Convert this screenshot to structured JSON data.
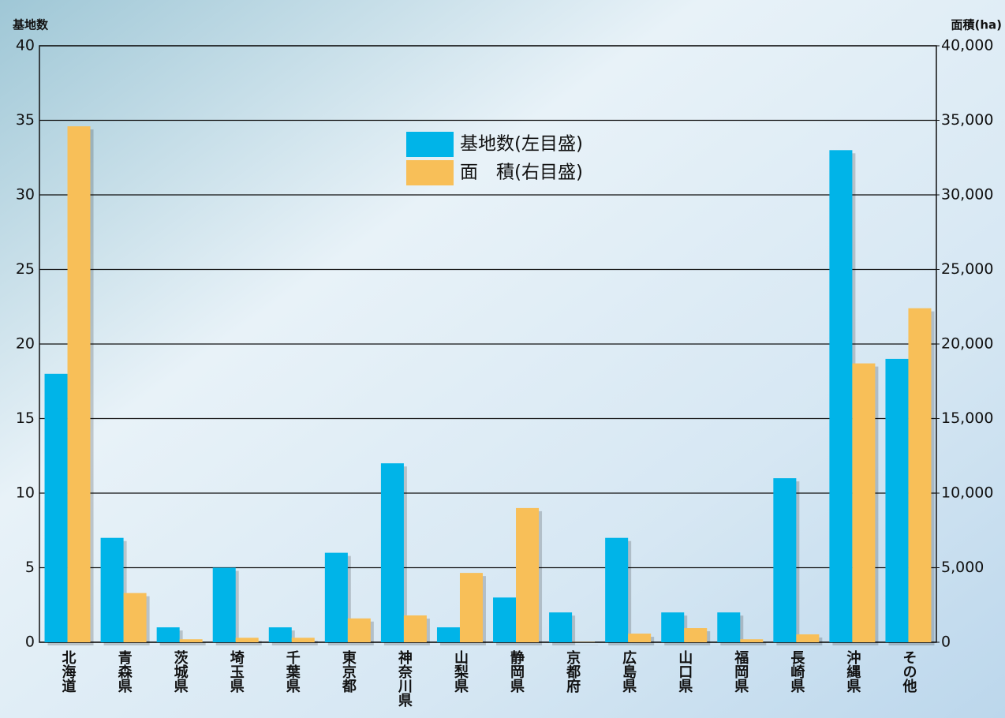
{
  "chart_data": {
    "type": "bar",
    "y_label": "基地数",
    "y2_label": "面積(ha)",
    "categories": [
      "北海道",
      "青森県",
      "茨城県",
      "埼玉県",
      "千葉県",
      "東京都",
      "神奈川県",
      "山梨県",
      "静岡県",
      "京都府",
      "広島県",
      "山口県",
      "福岡県",
      "長崎県",
      "沖縄県",
      "その他"
    ],
    "series": [
      {
        "name": "基地数(左目盛)",
        "color": "#00b4e8",
        "values": [
          18,
          7,
          1,
          5,
          1,
          6,
          12,
          1,
          3,
          2,
          7,
          2,
          2,
          11,
          33,
          19
        ]
      },
      {
        "name": "面　積(右目盛)",
        "color": "#f8bf58",
        "axis": "y2",
        "values": [
          34600,
          3300,
          200,
          300,
          300,
          1600,
          1800,
          4650,
          9000,
          20,
          580,
          950,
          200,
          530,
          18700,
          22400
        ]
      }
    ],
    "ylim": [
      0,
      40
    ],
    "yticks": [
      0,
      5,
      10,
      15,
      20,
      25,
      30,
      35,
      40
    ],
    "y2lim": [
      0,
      40000
    ],
    "y2ticks": [
      0,
      {
        "value": 5000,
        "label": "5,000"
      },
      {
        "value": 10000,
        "label": "10,000"
      },
      {
        "value": 15000,
        "label": "15,000"
      },
      {
        "value": 20000,
        "label": "20,000"
      },
      {
        "value": 25000,
        "label": "25,000"
      },
      {
        "value": 30000,
        "label": "30,000"
      },
      {
        "value": 35000,
        "label": "35,000"
      },
      {
        "value": 40000,
        "label": "40,000"
      }
    ],
    "grid": true
  }
}
